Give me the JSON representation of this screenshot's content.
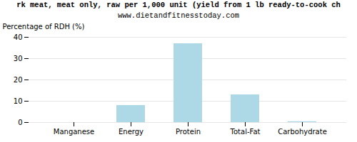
{
  "chart_data": {
    "type": "bar",
    "title": "rk meat, meat only, raw per 1,000 unit (yield from 1 lb ready-to-cook ch",
    "subtitle": "www.dietandfitnesstoday.com",
    "categories": [
      "Manganese",
      "Energy",
      "Protein",
      "Total-Fat",
      "Carbohydrate"
    ],
    "values": [
      0.0,
      8.0,
      37.0,
      13.0,
      0.4
    ],
    "color": "#add8e6",
    "ylabel": "Percentage of RDH (%)",
    "ylim": [
      0,
      40
    ],
    "yticks": [
      0,
      10,
      20,
      30,
      40
    ],
    "grid": true
  }
}
